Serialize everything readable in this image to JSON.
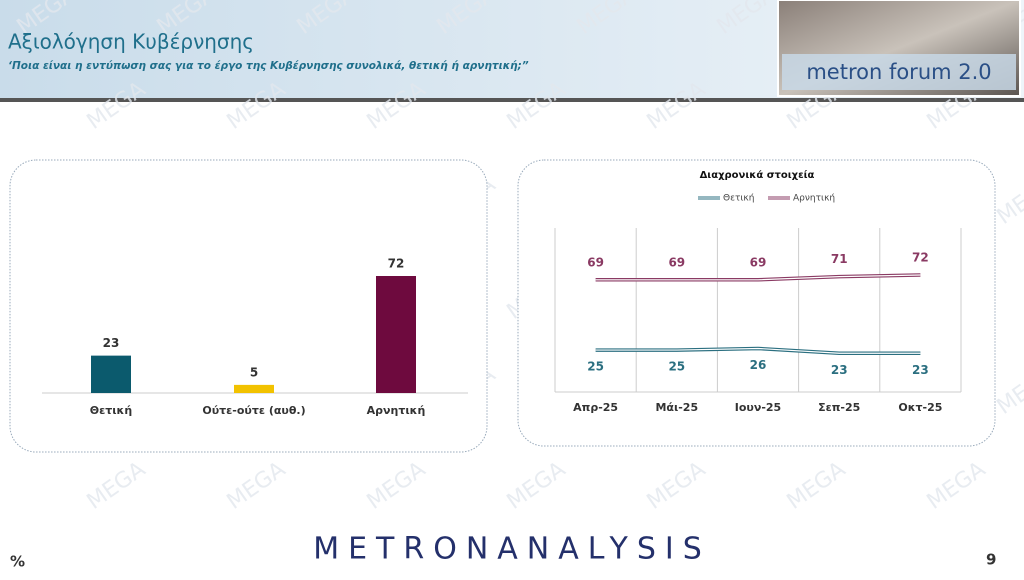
{
  "header": {
    "title": "Αξιολόγηση Κυβέρνησης",
    "subtitle": "‘Ποια είναι η εντύπωση σας για το έργο της Κυβέρνησης συνολικά, θετική ή αρνητική;”",
    "badge": "metron forum 2.0"
  },
  "watermark": "MEGA",
  "footer": {
    "logo": "METRONANALYSIS",
    "unit": "%",
    "page": "9"
  },
  "chart_data": [
    {
      "type": "bar",
      "categories": [
        "Θετική",
        "Ούτε-ούτε (αυθ.)",
        "Αρνητική"
      ],
      "values": [
        23,
        5,
        72
      ],
      "colors": [
        "#0b5a6d",
        "#f2c200",
        "#6e0a3e"
      ]
    },
    {
      "type": "line",
      "title": "Διαχρονικά στοιχεία",
      "categories": [
        "Απρ-25",
        "Μάι-25",
        "Ιουν-25",
        "Σεπ-25",
        "Οκτ-25"
      ],
      "series": [
        {
          "name": "Θετική",
          "color": "#2b6f80",
          "values": [
            25,
            25,
            26,
            23,
            23
          ]
        },
        {
          "name": "Αρνητική",
          "color": "#8a3a63",
          "values": [
            69,
            69,
            69,
            71,
            72
          ]
        }
      ]
    }
  ]
}
